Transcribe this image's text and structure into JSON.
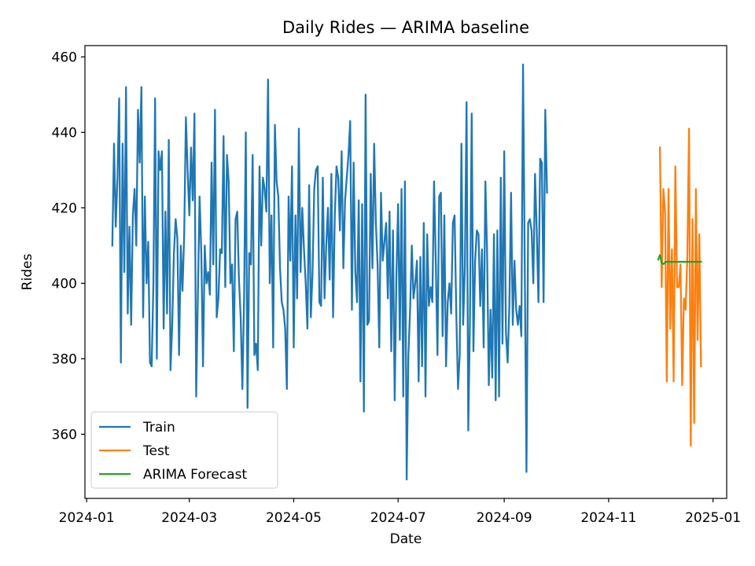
{
  "chart_data": {
    "type": "line",
    "title": "Daily Rides — ARIMA baseline",
    "xlabel": "Date",
    "ylabel": "Rides",
    "xlim": [
      "2023-12-31",
      "2025-01-09"
    ],
    "ylim": [
      343,
      463
    ],
    "x_ticks": [
      {
        "date": "2024-01-01",
        "label": "2024-01"
      },
      {
        "date": "2024-03-01",
        "label": "2024-03"
      },
      {
        "date": "2024-05-01",
        "label": "2024-05"
      },
      {
        "date": "2024-07-01",
        "label": "2024-07"
      },
      {
        "date": "2024-09-01",
        "label": "2024-09"
      },
      {
        "date": "2024-11-01",
        "label": "2024-11"
      },
      {
        "date": "2025-01-01",
        "label": "2025-01"
      }
    ],
    "y_ticks": [
      360,
      380,
      400,
      420,
      440,
      460
    ],
    "grid": false,
    "legend": "lower-left",
    "series": [
      {
        "name": "Train",
        "color": "#1f77b4",
        "start_date": "2024-01-16",
        "values": [
          410,
          437,
          415,
          428,
          449,
          379,
          437,
          403,
          452,
          392,
          415,
          389,
          418,
          425,
          410,
          446,
          432,
          452,
          391,
          423,
          400,
          411,
          379,
          378,
          400,
          449,
          380,
          435,
          430,
          435,
          388,
          419,
          392,
          438,
          377,
          389,
          408,
          417,
          412,
          381,
          410,
          398,
          413,
          444,
          430,
          418,
          436,
          422,
          445,
          370,
          397,
          423,
          408,
          378,
          410,
          400,
          403,
          397,
          432,
          405,
          446,
          391,
          396,
          409,
          408,
          439,
          399,
          434,
          427,
          400,
          405,
          382,
          417,
          419,
          401,
          391,
          372,
          396,
          440,
          367,
          408,
          405,
          434,
          381,
          384,
          377,
          431,
          410,
          428,
          425,
          419,
          454,
          400,
          418,
          383,
          442,
          427,
          423,
          404,
          395,
          393,
          388,
          372,
          423,
          406,
          431,
          383,
          418,
          396,
          441,
          403,
          420,
          409,
          400,
          388,
          426,
          391,
          403,
          425,
          430,
          431,
          395,
          394,
          428,
          396,
          410,
          420,
          401,
          429,
          391,
          418,
          431,
          428,
          414,
          435,
          404,
          422,
          428,
          434,
          443,
          393,
          432,
          403,
          395,
          422,
          374,
          421,
          366,
          450,
          389,
          390,
          429,
          404,
          437,
          416,
          405,
          383,
          424,
          406,
          411,
          416,
          396,
          419,
          382,
          414,
          369,
          402,
          421,
          385,
          425,
          370,
          427,
          348,
          381,
          393,
          410,
          396,
          400,
          406,
          374,
          407,
          378,
          416,
          370,
          413,
          394,
          399,
          395,
          427,
          406,
          381,
          423,
          424,
          386,
          418,
          378,
          395,
          400,
          392,
          416,
          418,
          392,
          372,
          381,
          437,
          389,
          404,
          448,
          361,
          391,
          445,
          382,
          406,
          414,
          413,
          394,
          409,
          383,
          427,
          408,
          373,
          393,
          375,
          413,
          369,
          414,
          370,
          428,
          384,
          435,
          387,
          379,
          394,
          424,
          389,
          406,
          393,
          389,
          394,
          386,
          458,
          405,
          350,
          416,
          417,
          414,
          400,
          429,
          414,
          395,
          433,
          432,
          395,
          446,
          424
        ]
      },
      {
        "name": "Test",
        "color": "#ff7f0e",
        "start_date": "2024-12-01",
        "values": [
          436,
          399,
          425,
          419,
          374,
          425,
          388,
          409,
          374,
          431,
          399,
          399,
          405,
          373,
          396,
          393,
          407,
          441,
          357,
          417,
          363,
          425,
          385,
          413,
          378
        ]
      },
      {
        "name": "ARIMA Forecast",
        "color": "#2ca02c",
        "start_date": "2024-11-30",
        "values": [
          406.3,
          407.5,
          405.4,
          405.1,
          405.6,
          405.7,
          405.7,
          405.7,
          405.7,
          405.7,
          405.7,
          405.7,
          405.7,
          405.7,
          405.7,
          405.7,
          405.7,
          405.7,
          405.7,
          405.7,
          405.7,
          405.7,
          405.7,
          405.7,
          405.7,
          405.7
        ]
      }
    ]
  }
}
